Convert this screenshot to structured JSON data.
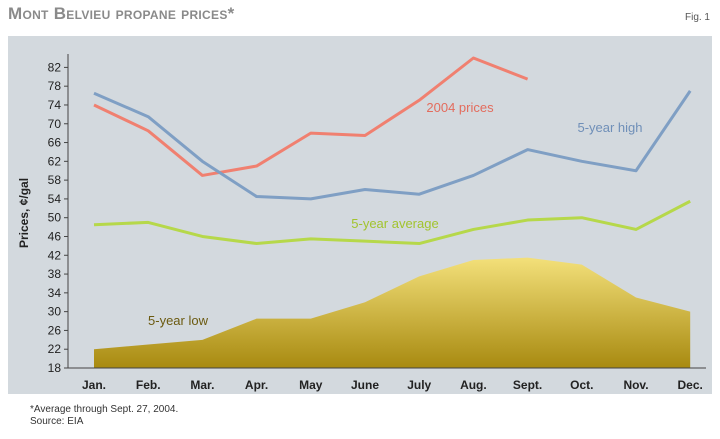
{
  "title": "Mont Belvieu propane prices*",
  "fig_label": "Fig. 1",
  "footnote": "*Average through Sept. 27, 2004.",
  "source": "Source: EIA",
  "colors": {
    "prices_2004": "#f08070",
    "high_5yr": "#7f9fc4",
    "avg_5yr": "#b6d84a",
    "low_5yr_fill_top": "#f3e07a",
    "low_5yr_fill_bottom": "#a88a10",
    "annotation_2004": "#e36c5d",
    "annotation_high": "#6f8fb8",
    "annotation_avg": "#a2c42e",
    "annotation_low": "#6b5a10"
  },
  "chart_data": {
    "type": "line",
    "title": "Mont Belvieu propane prices*",
    "ylabel": "Prices, ¢/gal",
    "xlabel": "",
    "ylim": [
      18,
      84
    ],
    "yticks": [
      18,
      22,
      26,
      30,
      34,
      38,
      42,
      46,
      50,
      54,
      58,
      62,
      66,
      70,
      74,
      78,
      82
    ],
    "categories": [
      "Jan.",
      "Feb.",
      "Mar.",
      "Apr.",
      "May",
      "June",
      "July",
      "Aug.",
      "Sept.",
      "Oct.",
      "Nov.",
      "Dec."
    ],
    "grid": false,
    "series": [
      {
        "name": "2004 prices",
        "values": [
          74,
          68.5,
          59,
          61,
          68,
          67.5,
          75,
          84,
          79.5,
          null,
          null,
          null
        ]
      },
      {
        "name": "5-year high",
        "values": [
          76.5,
          71.5,
          62,
          54.5,
          54,
          56,
          55,
          59,
          64.5,
          62,
          60,
          77
        ]
      },
      {
        "name": "5-year average",
        "values": [
          48.5,
          49,
          46,
          44.5,
          45.5,
          45,
          44.5,
          47.5,
          49.5,
          50,
          47.5,
          53.5
        ]
      },
      {
        "name": "5-year low",
        "type": "area",
        "values": [
          22,
          23,
          24,
          28.5,
          28.5,
          32,
          37.5,
          41,
          41.5,
          40,
          33,
          30
        ]
      }
    ]
  }
}
